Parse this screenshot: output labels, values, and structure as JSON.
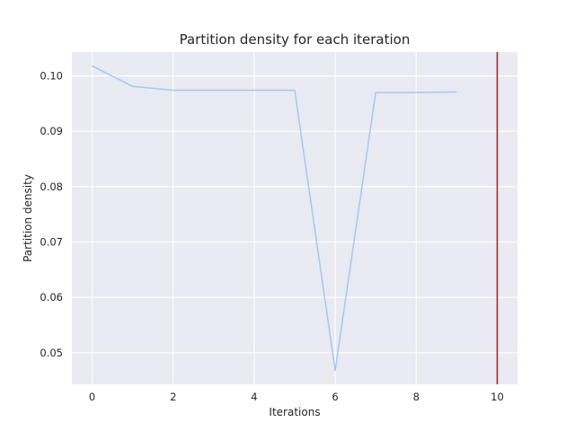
{
  "chart_data": {
    "type": "line",
    "title": "Partition density for each iteration",
    "xlabel": "Iterations",
    "ylabel": "Partition density",
    "x": [
      0,
      1,
      2,
      3,
      4,
      5,
      6,
      7,
      8,
      9
    ],
    "series": [
      {
        "values": [
          0.1018,
          0.0981,
          0.0974,
          0.0974,
          0.0974,
          0.0974,
          0.0468,
          0.097,
          0.097,
          0.0971
        ],
        "color": "#a1c9f4"
      }
    ],
    "vline": {
      "x": 10,
      "color": "#b22222"
    },
    "xlim": [
      -0.5,
      10.5
    ],
    "ylim": [
      0.0443,
      0.1043
    ],
    "xticks": [
      0,
      2,
      4,
      6,
      8,
      10
    ],
    "yticks": [
      0.05,
      0.06,
      0.07,
      0.08,
      0.09,
      0.1
    ],
    "xtick_labels": [
      "0",
      "2",
      "4",
      "6",
      "8",
      "10"
    ],
    "ytick_labels": [
      "0.05",
      "0.06",
      "0.07",
      "0.08",
      "0.09",
      "0.10"
    ],
    "background": "#eaeaf2",
    "grid": true,
    "legend": false
  }
}
